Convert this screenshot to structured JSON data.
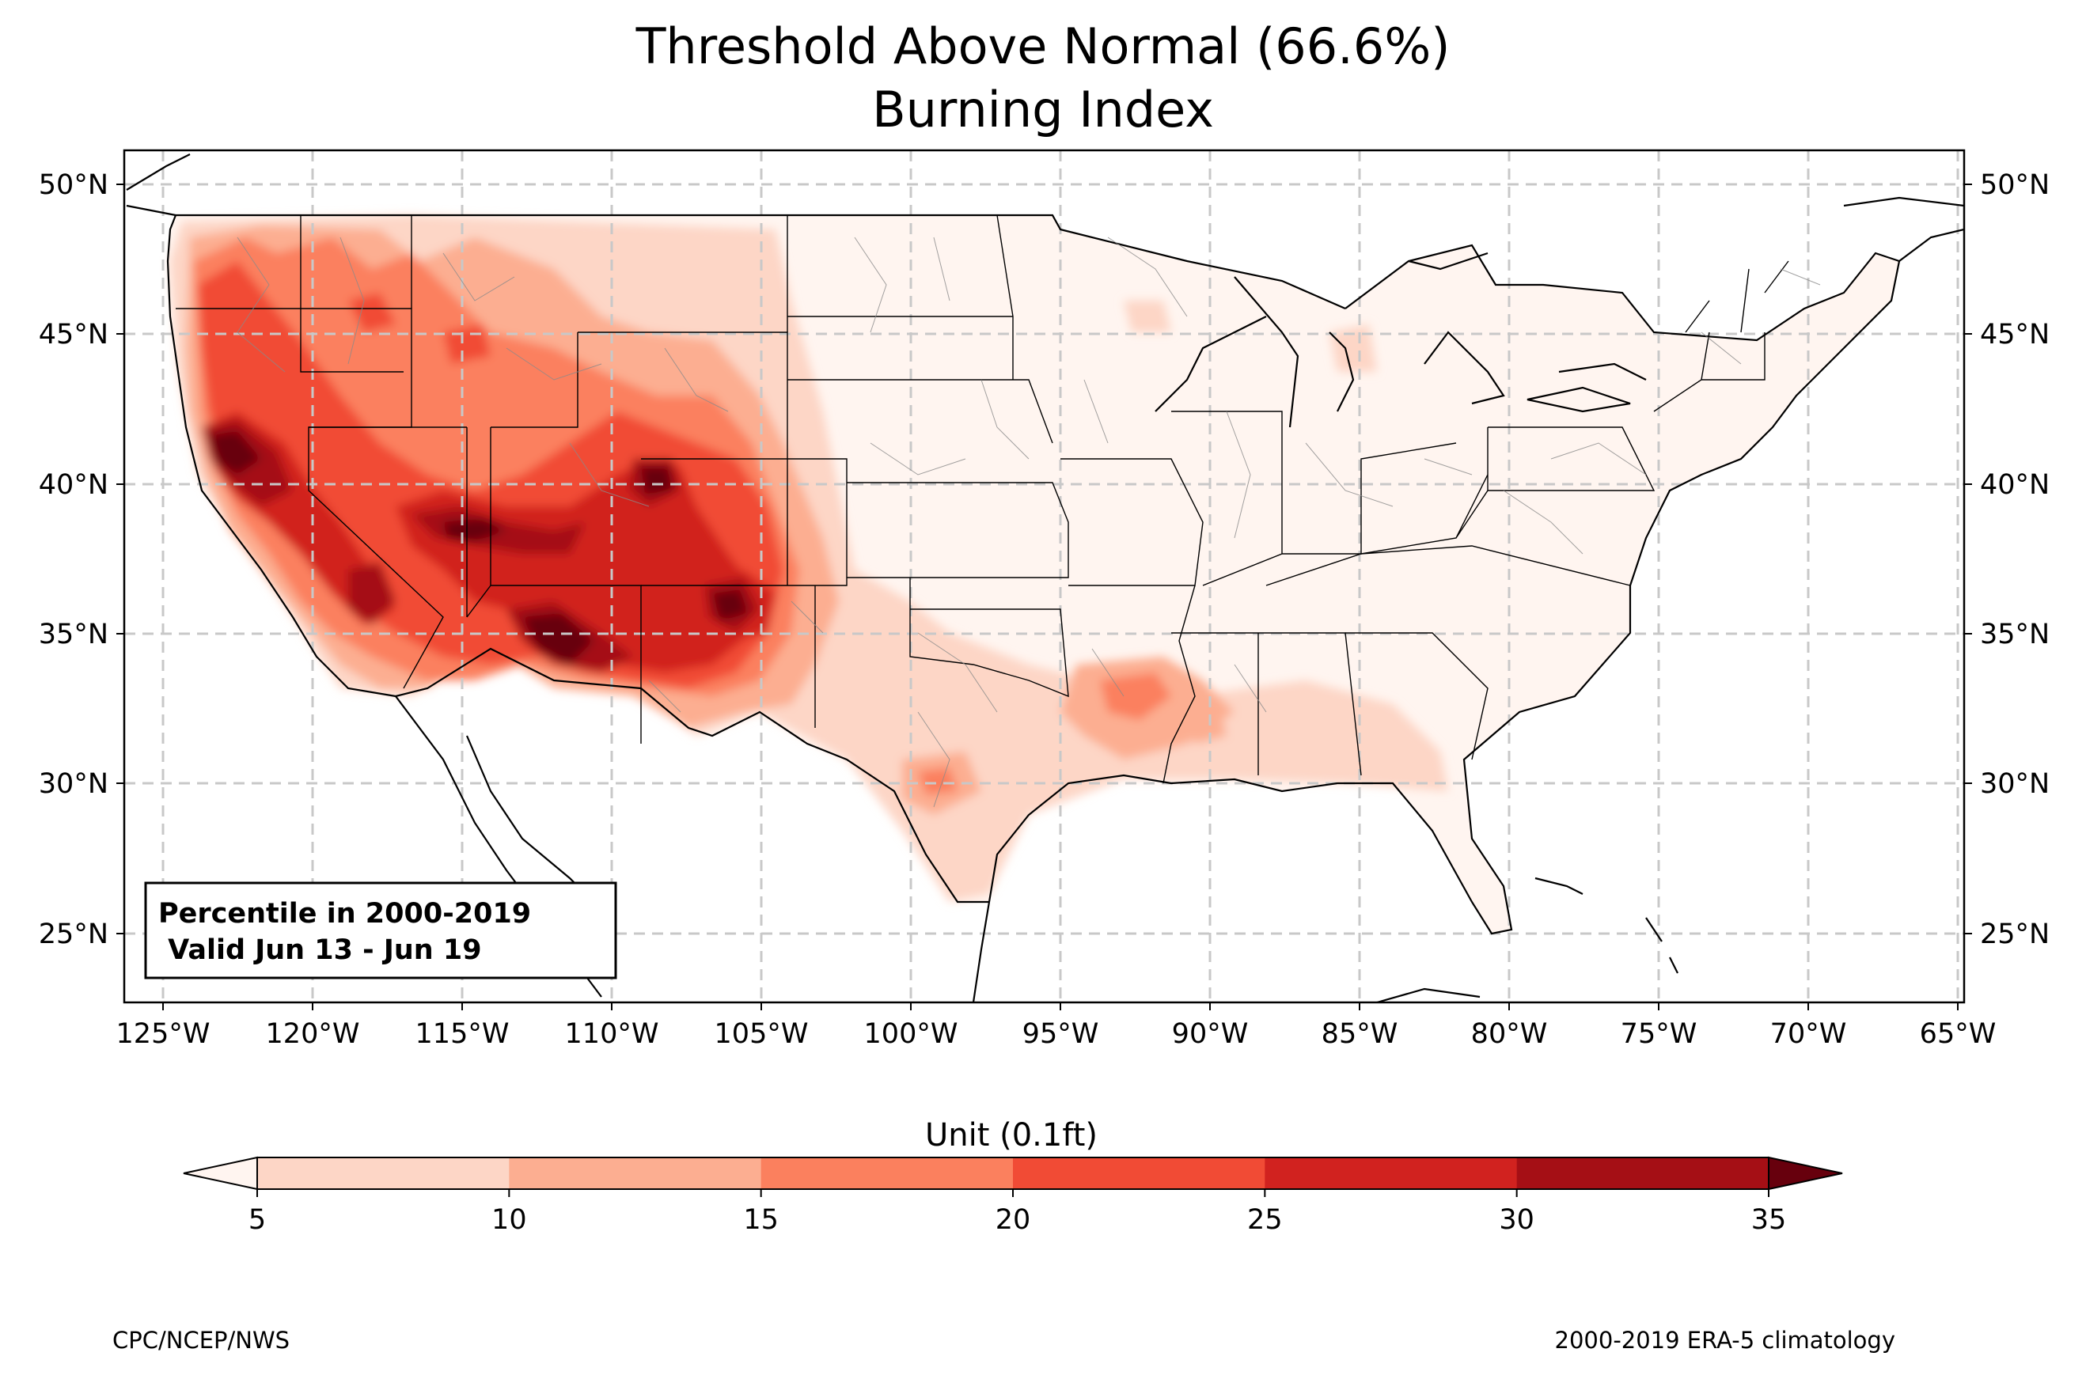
{
  "title": {
    "line1": "Threshold Above Normal (66.6%)",
    "line2": "Burning Index"
  },
  "map": {
    "lon_range": [
      -126.3,
      -64.9
    ],
    "lat_range": [
      22.8,
      51.2
    ],
    "lon_ticks": [
      "125°W",
      "120°W",
      "115°W",
      "110°W",
      "105°W",
      "100°W",
      "95°W",
      "90°W",
      "85°W",
      "80°W",
      "75°W",
      "70°W",
      "65°W"
    ],
    "lat_ticks_left": [
      "50°N",
      "45°N",
      "40°N",
      "35°N",
      "30°N",
      "25°N"
    ],
    "lat_ticks_right": [
      "50°N",
      "45°N",
      "40°N",
      "35°N",
      "30°N",
      "25°N"
    ],
    "grid": true
  },
  "info_box": {
    "line1": "Percentile in 2000-2019",
    "line2": " Valid Jun 13 - Jun 19"
  },
  "colorbar": {
    "label": "Unit (0.1ft)",
    "ticks": [
      "5",
      "10",
      "15",
      "20",
      "25",
      "30",
      "35"
    ],
    "colors": [
      "#fff5f0",
      "#fdd6c6",
      "#fcae91",
      "#fb805e",
      "#f14b35",
      "#d1221f",
      "#a50f15",
      "#67000d"
    ],
    "extend": "both"
  },
  "footer": {
    "left": "CPC/NCEP/NWS",
    "right": "2000-2019 ERA-5 climatology"
  }
}
